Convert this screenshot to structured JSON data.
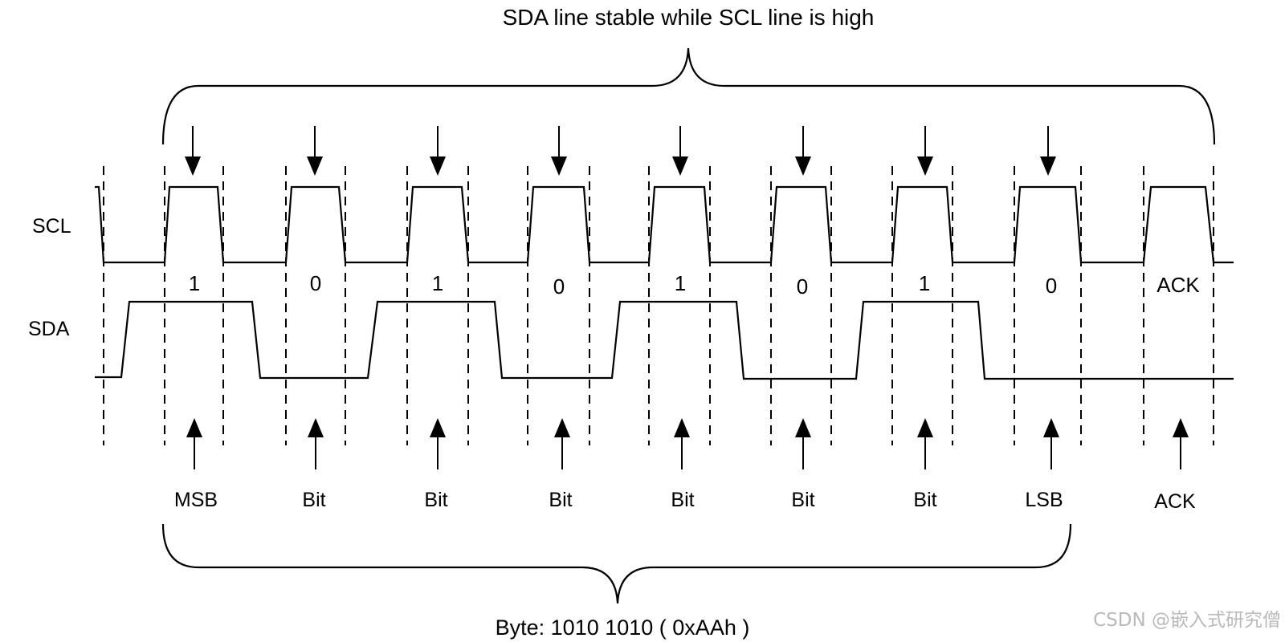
{
  "diagram": {
    "top_caption": "SDA line stable while SCL line is high",
    "scl_label": "SCL",
    "sda_label": "SDA",
    "bits": [
      {
        "value": "1",
        "name": "MSB"
      },
      {
        "value": "0",
        "name": "Bit"
      },
      {
        "value": "1",
        "name": "Bit"
      },
      {
        "value": "0",
        "name": "Bit"
      },
      {
        "value": "1",
        "name": "Bit"
      },
      {
        "value": "0",
        "name": "Bit"
      },
      {
        "value": "1",
        "name": "Bit"
      },
      {
        "value": "0",
        "name": "LSB"
      },
      {
        "value": "ACK",
        "name": "ACK"
      }
    ],
    "bottom_caption": "Byte: 1010 1010 ( 0xAAh )",
    "watermark": "CSDN @嵌入式研究僧"
  }
}
